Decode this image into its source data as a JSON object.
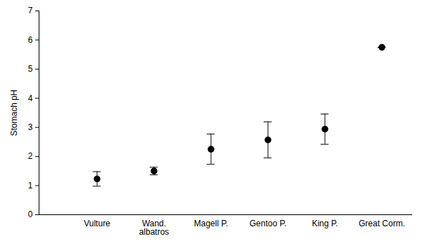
{
  "chart_data": {
    "type": "scatter",
    "categories": [
      "Vulture",
      "Wand.\nalbatros",
      "Magell P.",
      "Gentoo P.",
      "King P.",
      "Great Corm."
    ],
    "values": [
      1.23,
      1.5,
      2.25,
      2.57,
      2.94,
      5.75
    ],
    "errors": [
      0.25,
      0.13,
      0.52,
      0.62,
      0.52,
      0
    ],
    "y_label": "Stomach pH",
    "ylim": [
      0,
      7
    ],
    "yticks": [
      0,
      1,
      2,
      3,
      4,
      5,
      6,
      7
    ],
    "color": "#000000",
    "marker": "circle",
    "grid": false
  }
}
